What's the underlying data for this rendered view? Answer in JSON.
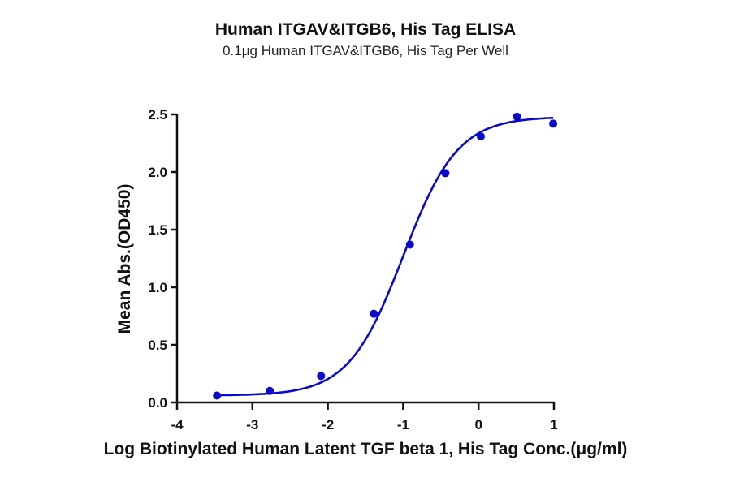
{
  "chart_data": {
    "type": "line",
    "title": "Human ITGAV&ITGB6, His Tag ELISA",
    "subtitle": "0.1μg Human ITGAV&ITGB6, His Tag Per Well",
    "xlabel": "Log Biotinylated Human Latent TGF beta 1, His Tag Conc.(μg/ml)",
    "ylabel": "Mean Abs.(OD450)",
    "xlim": [
      -4,
      1
    ],
    "ylim": [
      0,
      2.5
    ],
    "x_ticks": [
      -4,
      -3,
      -2,
      -1,
      0,
      1
    ],
    "x_tick_labels": [
      "-4",
      "-3",
      "-2",
      "-1",
      "0",
      "1"
    ],
    "y_ticks": [
      0,
      0.5,
      1.0,
      1.5,
      2.0,
      2.5
    ],
    "y_tick_labels": [
      "0.0",
      "0.5",
      "1.0",
      "1.5",
      "2.0",
      "2.5"
    ],
    "grid": false,
    "legend": null,
    "series": [
      {
        "name": "ELISA",
        "color": "#0A0ACC",
        "x": [
          -3.47,
          -2.77,
          -2.09,
          -1.39,
          -0.91,
          -0.44,
          0.03,
          0.51,
          0.99
        ],
        "y": [
          0.06,
          0.1,
          0.23,
          0.77,
          1.37,
          1.99,
          2.31,
          2.48,
          2.42
        ],
        "fit": {
          "model": "4PL",
          "bottom": 0.06,
          "top": 2.48,
          "logEC50": -1.0,
          "hill": 1.2
        }
      }
    ]
  }
}
